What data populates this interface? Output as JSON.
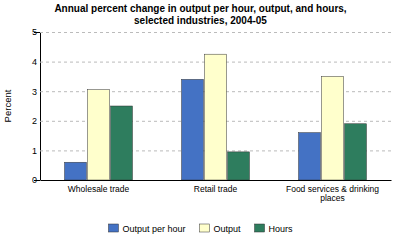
{
  "chart_data": {
    "type": "bar",
    "title": "Annual percent change in output per hour, output, and hours,\nselected industries, 2004-05",
    "categories": [
      "Wholesale trade",
      "Retail trade",
      "Food services & drinking\nplaces"
    ],
    "series": [
      {
        "name": "Output per hour",
        "color": "#4472C4",
        "values": [
          0.6,
          3.4,
          1.6
        ]
      },
      {
        "name": "Output",
        "color": "#FFFFCC",
        "values": [
          3.05,
          4.25,
          3.5
        ]
      },
      {
        "name": "Hours",
        "color": "#2E7D5E",
        "values": [
          2.5,
          0.95,
          1.9
        ]
      }
    ],
    "ylabel": "Percent",
    "ylim": [
      0,
      5
    ],
    "yticks": [
      0,
      1,
      2,
      3,
      4,
      5
    ],
    "grid": true,
    "legend": "bottom"
  }
}
